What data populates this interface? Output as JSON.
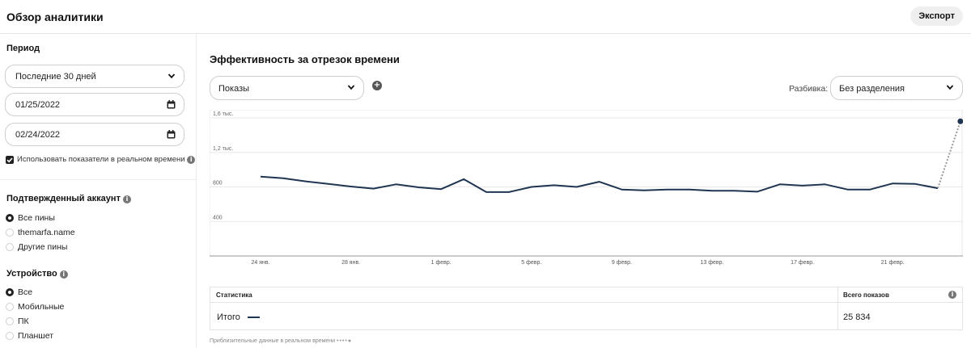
{
  "header": {
    "title": "Обзор аналитики",
    "export_label": "Экспорт"
  },
  "sidebar": {
    "period": {
      "title": "Период",
      "range_value": "Последние 30 дней",
      "start_date": "01/25/2022",
      "end_date": "02/24/2022",
      "realtime_label": "Использовать показатели в реальном времени",
      "realtime_checked": true
    },
    "verified_account": {
      "title": "Подтвержденный аккаунт",
      "options": [
        {
          "label": "Все пины",
          "selected": true
        },
        {
          "label": "themarfa.name",
          "selected": false
        },
        {
          "label": "Другие пины",
          "selected": false
        }
      ]
    },
    "device": {
      "title": "Устройство",
      "options": [
        {
          "label": "Все",
          "selected": true
        },
        {
          "label": "Мобильные",
          "selected": false
        },
        {
          "label": "ПК",
          "selected": false
        },
        {
          "label": "Планшет",
          "selected": false
        }
      ]
    }
  },
  "main": {
    "title": "Эффективность за отрезок времени",
    "metric_select": "Показы",
    "split_label": "Разбивка:",
    "split_value": "Без разделения",
    "table": {
      "col_stat": "Статистика",
      "col_total": "Всего показов",
      "row_label": "Итого",
      "row_value": "25 834"
    },
    "footnote": "Приблизительные данные в реальном времени"
  },
  "colors": {
    "line": "#1f3551",
    "realtime_dash": "#9a9a9a",
    "grid": "#e8e8e8"
  },
  "chart_data": {
    "type": "line",
    "series": [
      {
        "values": [
          920,
          900,
          865,
          835,
          805,
          780,
          830,
          795,
          775,
          890,
          740,
          740,
          800,
          820,
          800,
          860,
          770,
          760,
          770,
          770,
          755,
          755,
          745,
          830,
          815,
          830,
          770,
          770,
          840,
          835,
          785
        ]
      }
    ],
    "realtime_point": 1560,
    "x_start": "2022-01-24",
    "tick_labels": [
      "24 янв.",
      "28 янв.",
      "1 февр.",
      "5 февр.",
      "9 февр.",
      "13 февр.",
      "17 февр.",
      "21 февр."
    ],
    "y_ticks": [
      400,
      800,
      1200,
      1600
    ],
    "y_tick_labels": [
      "400",
      "800",
      "1,2 тыс.",
      "1,6 тыс."
    ],
    "ylim": [
      0,
      1600
    ],
    "grid": true
  }
}
